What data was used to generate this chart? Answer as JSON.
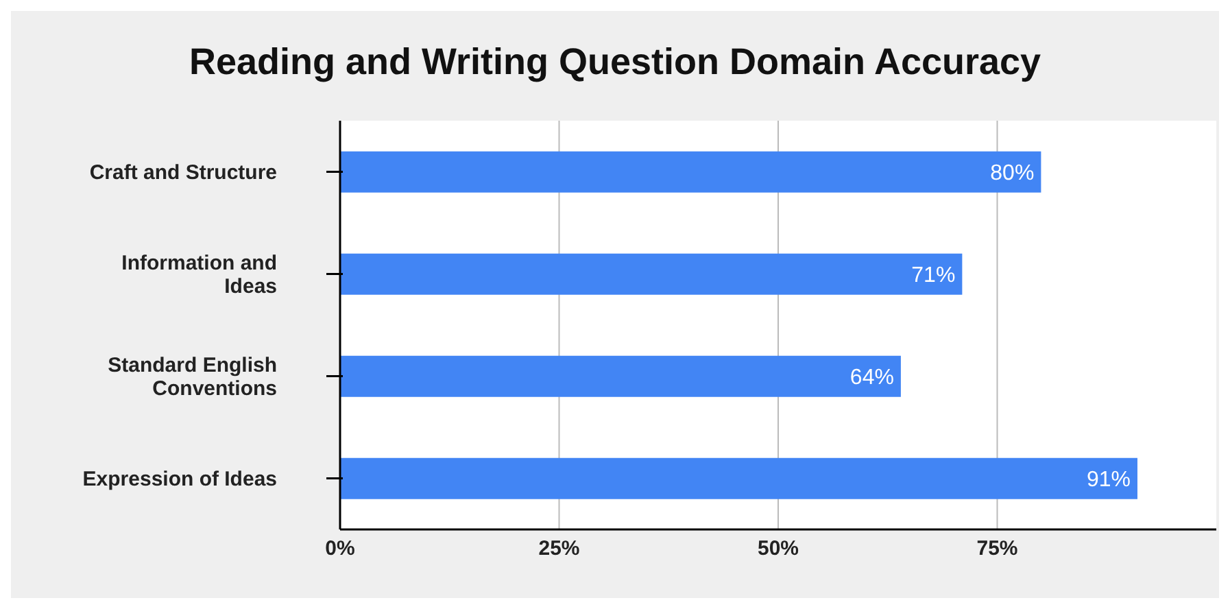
{
  "chart_data": {
    "type": "bar",
    "orientation": "horizontal",
    "title": "Reading and Writing Question Domain Accuracy",
    "categories": [
      "Craft and Structure",
      "Information and Ideas",
      "Standard English Conventions",
      "Expression of Ideas"
    ],
    "series": [
      {
        "color": "#4285f4",
        "values": [
          80,
          71,
          64,
          91
        ],
        "value_labels": [
          "80%",
          "71%",
          "64%",
          "91%"
        ]
      }
    ],
    "xlim": [
      0,
      100
    ],
    "xticks": [
      {
        "value": 0,
        "label": "0%"
      },
      {
        "value": 25,
        "label": "25%"
      },
      {
        "value": 50,
        "label": "50%"
      },
      {
        "value": 75,
        "label": "75%"
      }
    ],
    "grid": "x",
    "legend": false
  }
}
